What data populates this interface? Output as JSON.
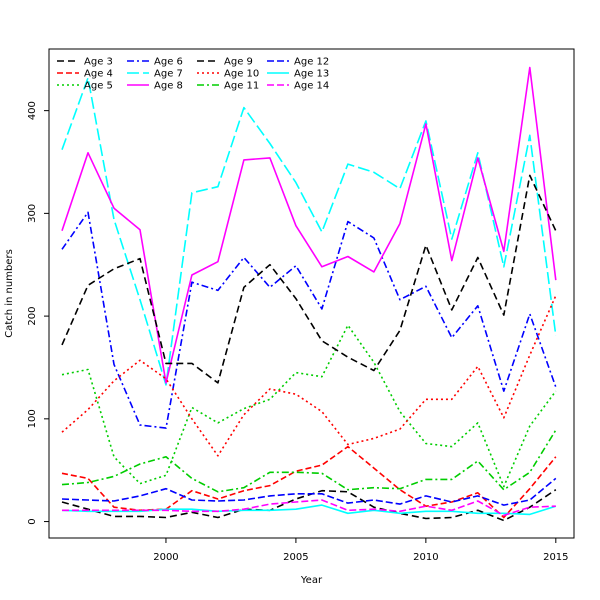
{
  "chart_data": {
    "type": "line",
    "title": "",
    "xlabel": "Year",
    "ylabel": "Catch in numbers",
    "xlim": [
      1995.5,
      2015.7
    ],
    "ylim": [
      -16,
      460
    ],
    "x_ticks": [
      2000,
      2005,
      2010,
      2015
    ],
    "y_ticks": [
      0,
      100,
      200,
      300,
      400
    ],
    "grid": false,
    "legend_position": "top-left",
    "x": [
      1996,
      1997,
      1998,
      1999,
      2000,
      2001,
      2002,
      2003,
      2004,
      2005,
      2006,
      2007,
      2008,
      2009,
      2010,
      2011,
      2012,
      2013,
      2014,
      2015
    ],
    "series": [
      {
        "name": "Age 3",
        "color": "#000000",
        "dash": "7,4",
        "values": [
          19,
          12,
          5,
          5,
          4,
          9,
          4,
          12,
          11,
          22,
          30,
          29,
          14,
          8,
          3,
          4,
          11,
          1,
          14,
          31
        ]
      },
      {
        "name": "Age 4",
        "color": "#ff0000",
        "dash": "6,3",
        "values": [
          47,
          42,
          14,
          11,
          12,
          30,
          22,
          30,
          35,
          49,
          55,
          73,
          52,
          31,
          15,
          19,
          28,
          4,
          32,
          63
        ]
      },
      {
        "name": "Age 5",
        "color": "#00cd00",
        "dash": "2,3",
        "values": [
          143,
          148,
          63,
          37,
          45,
          111,
          96,
          110,
          119,
          145,
          141,
          191,
          155,
          107,
          76,
          73,
          96,
          34,
          93,
          127
        ]
      },
      {
        "name": "Age 6",
        "color": "#0000ff",
        "dash": "7,3,2,3",
        "values": [
          265,
          301,
          153,
          94,
          91,
          233,
          225,
          257,
          228,
          249,
          207,
          292,
          276,
          216,
          229,
          179,
          210,
          127,
          202,
          131
        ]
      },
      {
        "name": "Age 7",
        "color": "#00ffff",
        "dash": "12,4",
        "values": [
          362,
          432,
          294,
          216,
          133,
          320,
          326,
          403,
          368,
          330,
          282,
          348,
          340,
          324,
          390,
          275,
          359,
          248,
          376,
          181
        ]
      },
      {
        "name": "Age 8",
        "color": "#ff00ff",
        "dash": "",
        "values": [
          283,
          359,
          305,
          284,
          135,
          240,
          253,
          352,
          354,
          288,
          248,
          258,
          243,
          290,
          387,
          254,
          354,
          263,
          442,
          235
        ]
      },
      {
        "name": "Age 9",
        "color": "#000000",
        "dash": "7,4",
        "values": [
          172,
          230,
          246,
          256,
          154,
          154,
          135,
          228,
          250,
          217,
          176,
          160,
          147,
          186,
          269,
          206,
          257,
          201,
          337,
          283
        ]
      },
      {
        "name": "Age 10",
        "color": "#ff0000",
        "dash": "2,3",
        "values": [
          87,
          109,
          137,
          157,
          139,
          100,
          64,
          104,
          129,
          124,
          107,
          75,
          81,
          90,
          119,
          119,
          151,
          101,
          162,
          220
        ]
      },
      {
        "name": "Age 11",
        "color": "#00cd00",
        "dash": "7,3,2,3",
        "values": [
          36,
          38,
          44,
          56,
          63,
          42,
          29,
          33,
          48,
          48,
          47,
          31,
          33,
          32,
          41,
          41,
          59,
          31,
          48,
          89
        ]
      },
      {
        "name": "Age 12",
        "color": "#0000ff",
        "dash": "7,3",
        "values": [
          22,
          21,
          20,
          25,
          32,
          21,
          20,
          21,
          25,
          27,
          27,
          18,
          21,
          17,
          25,
          19,
          25,
          16,
          21,
          42
        ]
      },
      {
        "name": "Age 13",
        "color": "#00ffff",
        "dash": "",
        "values": [
          11,
          10,
          10,
          10,
          12,
          12,
          10,
          11,
          11,
          12,
          16,
          8,
          11,
          8,
          10,
          10,
          8,
          8,
          7,
          15
        ]
      },
      {
        "name": "Age 14",
        "color": "#ff00ff",
        "dash": "7,3",
        "values": [
          11,
          11,
          11,
          11,
          11,
          10,
          10,
          12,
          17,
          19,
          21,
          11,
          12,
          10,
          15,
          11,
          20,
          6,
          14,
          15
        ]
      }
    ]
  }
}
